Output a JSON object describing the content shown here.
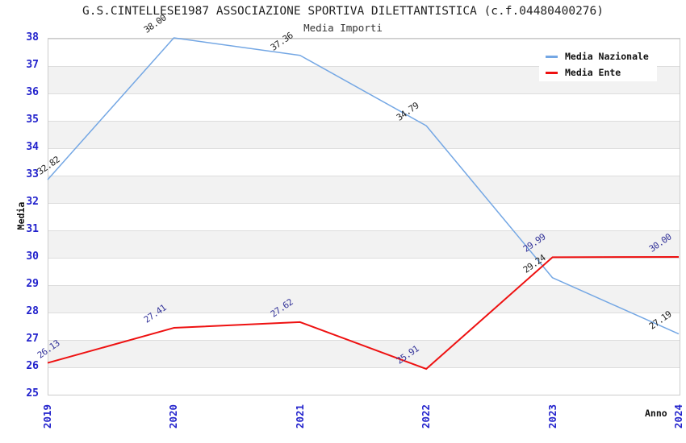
{
  "chart": {
    "title": "G.S.CINTELLESE1987 ASSOCIAZIONE SPORTIVA DILETTANTISTICA (c.f.04480400276)",
    "subtitle": "Media Importi"
  },
  "legend": {
    "items": [
      {
        "label": "Media Nazionale",
        "color": "#74A7E4"
      },
      {
        "label": "Media Ente",
        "color": "#EE1111"
      }
    ]
  },
  "chart_data": {
    "type": "line",
    "title": "G.S.CINTELLESE1987 ASSOCIAZIONE SPORTIVA DILETTANTISTICA (c.f.04480400276)",
    "subtitle": "Media Importi",
    "xlabel": "Anno",
    "ylabel": "Media",
    "categories": [
      "2019",
      "2020",
      "2021",
      "2022",
      "2023",
      "2024"
    ],
    "series": [
      {
        "name": "Media Nazionale",
        "color": "#74A7E4",
        "label_color": "#222222",
        "stroke_width": 1.5,
        "values": [
          32.82,
          38.0,
          37.36,
          34.79,
          29.24,
          27.19
        ]
      },
      {
        "name": "Media Ente",
        "color": "#EE1111",
        "label_color": "#333399",
        "stroke_width": 2,
        "values": [
          26.13,
          27.41,
          27.62,
          25.91,
          29.99,
          30.0
        ]
      }
    ],
    "ylim": [
      25,
      38
    ],
    "ytick_step": 1,
    "grid": "horizontal-bands",
    "band_colors": [
      "#FFFFFF",
      "#F2F2F2"
    ],
    "gridline_color": "#DDDDDD",
    "axis_tick_color": "#2222CC",
    "legend_position": "top-right"
  }
}
